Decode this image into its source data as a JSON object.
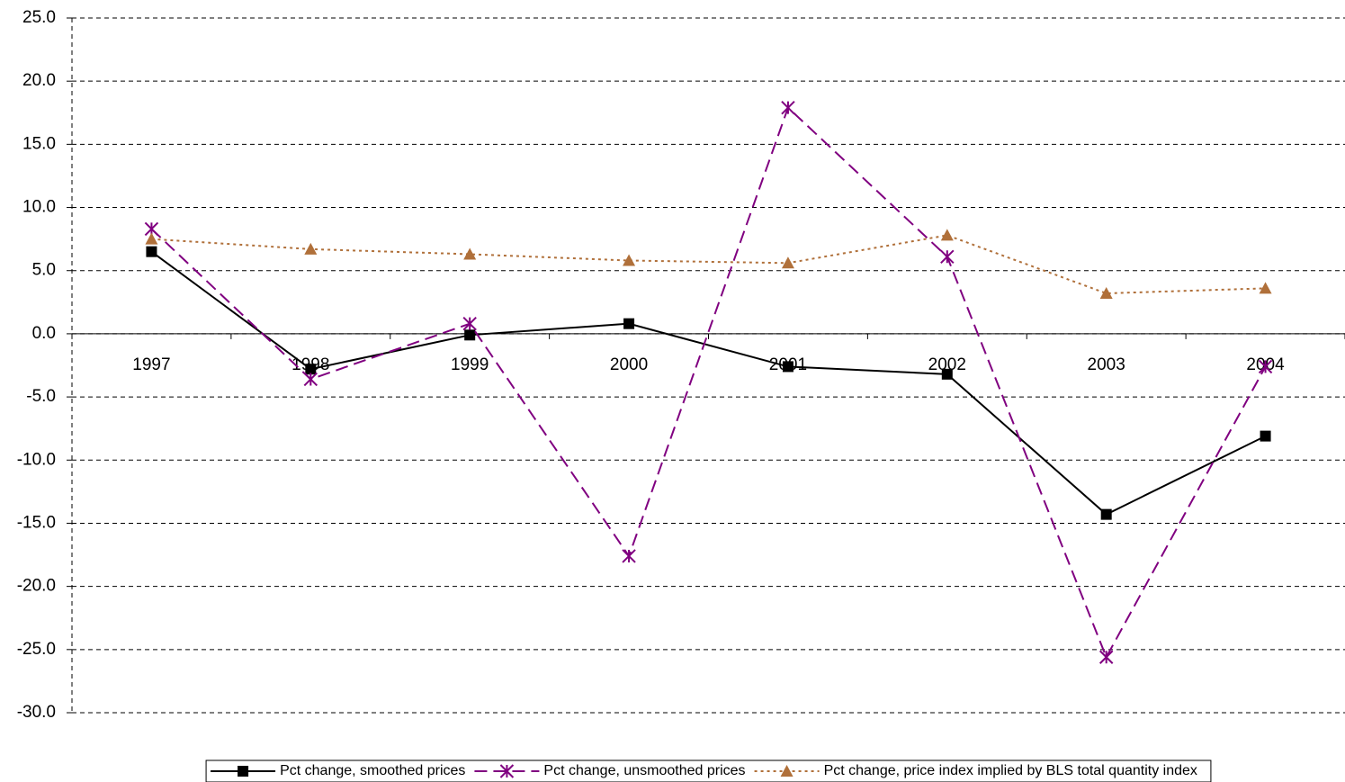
{
  "chart_data": {
    "type": "line",
    "categories": [
      "1997",
      "1998",
      "1999",
      "2000",
      "2001",
      "2002",
      "2003",
      "2004"
    ],
    "series": [
      {
        "name": "Pct change, smoothed prices",
        "color": "#000000",
        "marker": "square",
        "dash": "solid",
        "values": [
          6.5,
          -2.8,
          -0.1,
          0.8,
          -2.6,
          -3.2,
          -14.3,
          -8.1
        ]
      },
      {
        "name": "Pct change, unsmoothed prices",
        "color": "#800080",
        "marker": "asterisk",
        "dash": "dashed",
        "values": [
          8.3,
          -3.6,
          0.8,
          -17.6,
          17.9,
          6.1,
          -25.6,
          -2.6
        ]
      },
      {
        "name": "Pct change, price index implied by BLS total quantity index",
        "color": "#b0703a",
        "marker": "triangle",
        "dash": "dotted",
        "values": [
          7.5,
          6.7,
          6.3,
          5.8,
          5.6,
          7.8,
          3.2,
          3.6
        ]
      }
    ],
    "ylim": [
      -30,
      25
    ],
    "yticks": [
      {
        "value": -30,
        "label": "-30.0"
      },
      {
        "value": -25,
        "label": "-25.0"
      },
      {
        "value": -20,
        "label": "-20.0"
      },
      {
        "value": -15,
        "label": "-15.0"
      },
      {
        "value": -10,
        "label": "-10.0"
      },
      {
        "value": -5,
        "label": "-5.0"
      },
      {
        "value": 0,
        "label": "0.0"
      },
      {
        "value": 5,
        "label": "5.0"
      },
      {
        "value": 10,
        "label": "10.0"
      },
      {
        "value": 15,
        "label": "15.0"
      },
      {
        "value": 20,
        "label": "20.0"
      },
      {
        "value": 25,
        "label": "25.0"
      }
    ],
    "grid": true,
    "legend": "bottom"
  }
}
